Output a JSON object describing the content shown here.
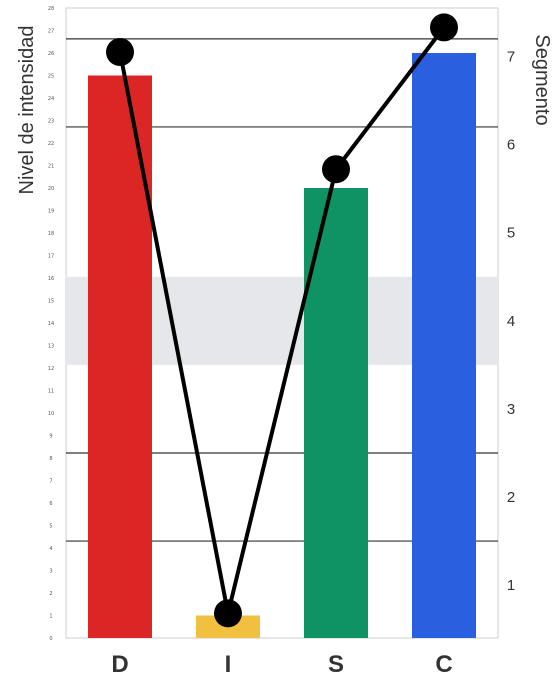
{
  "chart_data": {
    "type": "bar",
    "categories": [
      "D",
      "I",
      "S",
      "C"
    ],
    "series": [
      {
        "values": [
          25,
          1,
          20,
          26
        ]
      },
      {
        "values": [
          7.05,
          0.68,
          5.72,
          7.33
        ]
      }
    ],
    "bar_colors": [
      "#dc2626",
      "#f1c040",
      "#0f9365",
      "#2a5fe0"
    ],
    "line_color": "#000000",
    "band_color": "#e6e7ea",
    "band_range": [
      3.5,
      4.5
    ],
    "ylabel": "Nivel de intensidad",
    "y2label": "Segmento",
    "ylim": [
      0,
      28
    ],
    "y2lim": [
      0.4,
      7.55
    ],
    "y_ticks": [
      0,
      1,
      2,
      3,
      4,
      5,
      6,
      7,
      8,
      9,
      10,
      11,
      12,
      13,
      14,
      15,
      16,
      17,
      18,
      19,
      20,
      21,
      22,
      23,
      24,
      25,
      26,
      27,
      28
    ],
    "y2_ticks": [
      1,
      2,
      3,
      4,
      5,
      6,
      7
    ],
    "gridlines_at_segment": [
      1.5,
      2.5,
      6.2,
      7.2
    ]
  }
}
